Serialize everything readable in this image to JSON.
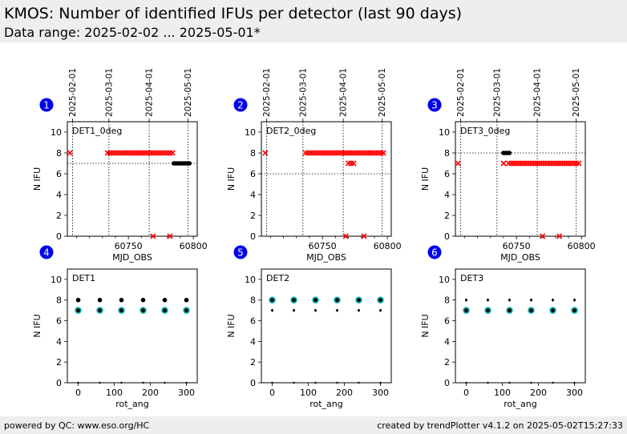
{
  "header": {
    "title": "KMOS: Number of identified IFUs per detector (last 90 days)",
    "subtitle": "Data range: 2025-02-02 ... 2025-05-01*",
    "background": "#eeeeee"
  },
  "footer": {
    "left": "powered by QC: www.eso.org/HC",
    "right": "created by trendPlotter v4.1.2 on 2025-05-02T15:27:33"
  },
  "colors": {
    "badge": "#0000ee",
    "red": "#ff0000",
    "black": "#000000",
    "teal": "#00aaaa"
  },
  "chart_data": [
    {
      "type": "scatter",
      "badge": "1",
      "panel_label": "DET1_0deg",
      "xlabel": "MJD_OBS",
      "ylabel": "N IFU",
      "xlim": [
        60703,
        60803
      ],
      "ylim": [
        0,
        11
      ],
      "xticks": [
        60750,
        60800
      ],
      "yticks": [
        0,
        2,
        4,
        6,
        8,
        10
      ],
      "date_ticks": [
        {
          "label": "2025-02-01",
          "mjd": 60707
        },
        {
          "label": "2025-03-01",
          "mjd": 60735
        },
        {
          "label": "2025-04-01",
          "mjd": 60766
        },
        {
          "label": "2025-05-01",
          "mjd": 60796
        }
      ],
      "threshold": 7.0,
      "series": [
        {
          "color": "red",
          "marker": "x",
          "points": [
            [
              60705,
              8
            ],
            [
              60734,
              8
            ],
            [
              60736,
              8
            ],
            [
              60738,
              8
            ],
            [
              60740,
              8
            ],
            [
              60742,
              8
            ],
            [
              60744,
              8
            ],
            [
              60746,
              8
            ],
            [
              60748,
              8
            ],
            [
              60750,
              8
            ],
            [
              60752,
              8
            ],
            [
              60754,
              8
            ],
            [
              60756,
              8
            ],
            [
              60758,
              8
            ],
            [
              60760,
              8
            ],
            [
              60762,
              8
            ],
            [
              60764,
              8
            ],
            [
              60766,
              8
            ],
            [
              60768,
              8
            ],
            [
              60770,
              8
            ],
            [
              60772,
              8
            ],
            [
              60774,
              8
            ],
            [
              60776,
              8
            ],
            [
              60778,
              8
            ],
            [
              60780,
              8
            ],
            [
              60782,
              8
            ],
            [
              60784,
              8
            ],
            [
              60769,
              0
            ],
            [
              60782,
              0
            ]
          ]
        },
        {
          "color": "black",
          "marker": "o",
          "points": [
            [
              60785,
              7
            ],
            [
              60786.5,
              7
            ],
            [
              60788,
              7
            ],
            [
              60789.5,
              7
            ],
            [
              60791,
              7
            ],
            [
              60792.5,
              7
            ],
            [
              60794,
              7
            ],
            [
              60795.5,
              7
            ],
            [
              60797,
              7
            ]
          ]
        }
      ]
    },
    {
      "type": "scatter",
      "badge": "2",
      "panel_label": "DET2_0deg",
      "xlabel": "MJD_OBS",
      "ylabel": "N IFU",
      "xlim": [
        60703,
        60803
      ],
      "ylim": [
        0,
        11
      ],
      "xticks": [
        60750,
        60800
      ],
      "yticks": [
        0,
        2,
        4,
        6,
        8,
        10
      ],
      "date_ticks": [
        {
          "label": "2025-02-01",
          "mjd": 60707
        },
        {
          "label": "2025-03-01",
          "mjd": 60735
        },
        {
          "label": "2025-04-01",
          "mjd": 60766
        },
        {
          "label": "2025-05-01",
          "mjd": 60796
        }
      ],
      "threshold": 6.0,
      "series": [
        {
          "color": "red",
          "marker": "x",
          "points": [
            [
              60706,
              8
            ],
            [
              60737,
              8
            ],
            [
              60739,
              8
            ],
            [
              60741,
              8
            ],
            [
              60743,
              8
            ],
            [
              60745,
              8
            ],
            [
              60747,
              8
            ],
            [
              60749,
              8
            ],
            [
              60751,
              8
            ],
            [
              60753,
              8
            ],
            [
              60755,
              8
            ],
            [
              60757,
              8
            ],
            [
              60759,
              8
            ],
            [
              60761,
              8
            ],
            [
              60763,
              8
            ],
            [
              60765,
              8
            ],
            [
              60767,
              8
            ],
            [
              60769,
              8
            ],
            [
              60771,
              8
            ],
            [
              60773,
              8
            ],
            [
              60775,
              8
            ],
            [
              60777,
              8
            ],
            [
              60779,
              8
            ],
            [
              60781,
              8
            ],
            [
              60783,
              8
            ],
            [
              60785,
              8
            ],
            [
              60787,
              8
            ],
            [
              60789,
              8
            ],
            [
              60791,
              8
            ],
            [
              60793,
              8
            ],
            [
              60795,
              8
            ],
            [
              60797,
              8
            ],
            [
              60770,
              7
            ],
            [
              60772,
              7
            ],
            [
              60774,
              7
            ],
            [
              60768,
              0
            ],
            [
              60782,
              0
            ]
          ]
        }
      ]
    },
    {
      "type": "scatter",
      "badge": "3",
      "panel_label": "DET3_0deg",
      "xlabel": "MJD_OBS",
      "ylabel": "N IFU",
      "xlim": [
        60703,
        60803
      ],
      "ylim": [
        0,
        11
      ],
      "xticks": [
        60750,
        60800
      ],
      "yticks": [
        0,
        2,
        4,
        6,
        8,
        10
      ],
      "date_ticks": [
        {
          "label": "2025-02-01",
          "mjd": 60707
        },
        {
          "label": "2025-03-01",
          "mjd": 60735
        },
        {
          "label": "2025-04-01",
          "mjd": 60766
        },
        {
          "label": "2025-05-01",
          "mjd": 60796
        }
      ],
      "threshold": 8.0,
      "series": [
        {
          "color": "red",
          "marker": "x",
          "points": [
            [
              60705,
              7
            ],
            [
              60740,
              7
            ],
            [
              60744,
              7
            ],
            [
              60746,
              7
            ],
            [
              60748,
              7
            ],
            [
              60750,
              7
            ],
            [
              60752,
              7
            ],
            [
              60754,
              7
            ],
            [
              60756,
              7
            ],
            [
              60758,
              7
            ],
            [
              60760,
              7
            ],
            [
              60762,
              7
            ],
            [
              60764,
              7
            ],
            [
              60766,
              7
            ],
            [
              60768,
              7
            ],
            [
              60770,
              7
            ],
            [
              60772,
              7
            ],
            [
              60774,
              7
            ],
            [
              60776,
              7
            ],
            [
              60778,
              7
            ],
            [
              60780,
              7
            ],
            [
              60782,
              7
            ],
            [
              60784,
              7
            ],
            [
              60786,
              7
            ],
            [
              60788,
              7
            ],
            [
              60790,
              7
            ],
            [
              60792,
              7
            ],
            [
              60794,
              7
            ],
            [
              60796,
              7
            ],
            [
              60798,
              7
            ],
            [
              60770,
              0
            ],
            [
              60783,
              0
            ]
          ]
        },
        {
          "color": "black",
          "marker": "o",
          "points": [
            [
              60740,
              8
            ],
            [
              60741.5,
              8
            ],
            [
              60743,
              8
            ],
            [
              60744.5,
              8
            ]
          ]
        }
      ]
    },
    {
      "type": "scatter",
      "badge": "4",
      "panel_label": "DET1",
      "xlabel": "rot_ang",
      "ylabel": "N IFU",
      "xlim": [
        -30,
        330
      ],
      "ylim": [
        0,
        11
      ],
      "xticks": [
        0,
        100,
        200,
        300
      ],
      "yticks": [
        0,
        2,
        4,
        6,
        8,
        10
      ],
      "series": [
        {
          "color": "black",
          "marker": "o",
          "points": [
            [
              0,
              8
            ],
            [
              60,
              8
            ],
            [
              120,
              8
            ],
            [
              180,
              8
            ],
            [
              240,
              8
            ],
            [
              300,
              8
            ]
          ]
        },
        {
          "color": "teal",
          "marker": "ring",
          "points": [
            [
              0,
              7
            ],
            [
              60,
              7
            ],
            [
              120,
              7
            ],
            [
              180,
              7
            ],
            [
              240,
              7
            ],
            [
              300,
              7
            ]
          ]
        },
        {
          "color": "black",
          "marker": "dot",
          "points": [
            [
              0,
              0
            ],
            [
              60,
              0
            ],
            [
              120,
              0
            ],
            [
              180,
              0
            ],
            [
              240,
              0
            ],
            [
              300,
              0
            ]
          ]
        }
      ]
    },
    {
      "type": "scatter",
      "badge": "5",
      "panel_label": "DET2",
      "xlabel": "rot_ang",
      "ylabel": "N IFU",
      "xlim": [
        -30,
        330
      ],
      "ylim": [
        0,
        11
      ],
      "xticks": [
        0,
        100,
        200,
        300
      ],
      "yticks": [
        0,
        2,
        4,
        6,
        8,
        10
      ],
      "series": [
        {
          "color": "teal",
          "marker": "ring",
          "points": [
            [
              0,
              8
            ],
            [
              60,
              8
            ],
            [
              120,
              8
            ],
            [
              180,
              8
            ],
            [
              240,
              8
            ],
            [
              300,
              8
            ]
          ]
        },
        {
          "color": "black",
          "marker": "diamond",
          "points": [
            [
              0,
              7
            ],
            [
              60,
              7
            ],
            [
              120,
              7
            ],
            [
              180,
              7
            ],
            [
              240,
              7
            ],
            [
              300,
              7
            ]
          ]
        },
        {
          "color": "black",
          "marker": "dot",
          "points": [
            [
              0,
              0
            ],
            [
              60,
              0
            ],
            [
              120,
              0
            ],
            [
              180,
              0
            ],
            [
              240,
              0
            ],
            [
              300,
              0
            ]
          ]
        }
      ]
    },
    {
      "type": "scatter",
      "badge": "6",
      "panel_label": "DET3",
      "xlabel": "rot_ang",
      "ylabel": "N IFU",
      "xlim": [
        -30,
        330
      ],
      "ylim": [
        0,
        11
      ],
      "xticks": [
        0,
        100,
        200,
        300
      ],
      "yticks": [
        0,
        2,
        4,
        6,
        8,
        10
      ],
      "series": [
        {
          "color": "black",
          "marker": "diamond",
          "points": [
            [
              0,
              8
            ],
            [
              60,
              8
            ],
            [
              120,
              8
            ],
            [
              180,
              8
            ],
            [
              240,
              8
            ],
            [
              300,
              8
            ]
          ]
        },
        {
          "color": "teal",
          "marker": "ring",
          "points": [
            [
              0,
              7
            ],
            [
              60,
              7
            ],
            [
              120,
              7
            ],
            [
              180,
              7
            ],
            [
              240,
              7
            ],
            [
              300,
              7
            ]
          ]
        },
        {
          "color": "black",
          "marker": "dot",
          "points": [
            [
              0,
              0
            ],
            [
              60,
              0
            ],
            [
              120,
              0
            ],
            [
              180,
              0
            ],
            [
              240,
              0
            ],
            [
              300,
              0
            ]
          ]
        }
      ]
    }
  ]
}
